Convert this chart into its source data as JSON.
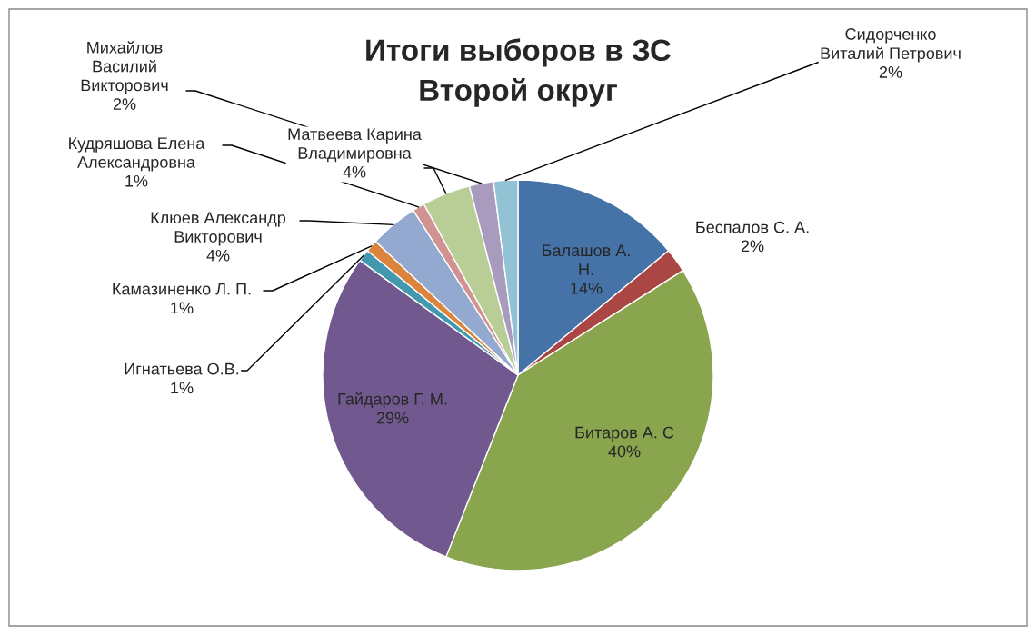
{
  "chart_data": {
    "type": "pie",
    "title": "Итоги выборов в ЗС\nВторой округ",
    "categories": [
      "Балашов А.\nН.",
      "Беспалов С. А.",
      "Битаров А. С",
      "Гайдаров Г. М.",
      "Игнатьева О.В.",
      "Камазиненко Л. П.",
      "Клюев Александр\nВикторович",
      "Кудряшова Елена\nАлександровна",
      "Матвеева Карина\nВладимировна",
      "Михайлов\nВасилий\nВикторович",
      "Сидорченко\nВиталий Петрович"
    ],
    "values": [
      14,
      2,
      40,
      29,
      1,
      1,
      4,
      1,
      4,
      2,
      2
    ],
    "colors": [
      "#4572a7",
      "#aa4643",
      "#89a54e",
      "#71588f",
      "#4198af",
      "#db843d",
      "#93a9cf",
      "#d19392",
      "#b9cd96",
      "#a99bbd",
      "#92c3d4"
    ],
    "value_labels": [
      "14%",
      "2%",
      "40%",
      "29%",
      "1%",
      "1%",
      "4%",
      "1%",
      "4%",
      "2%",
      "2%"
    ]
  }
}
